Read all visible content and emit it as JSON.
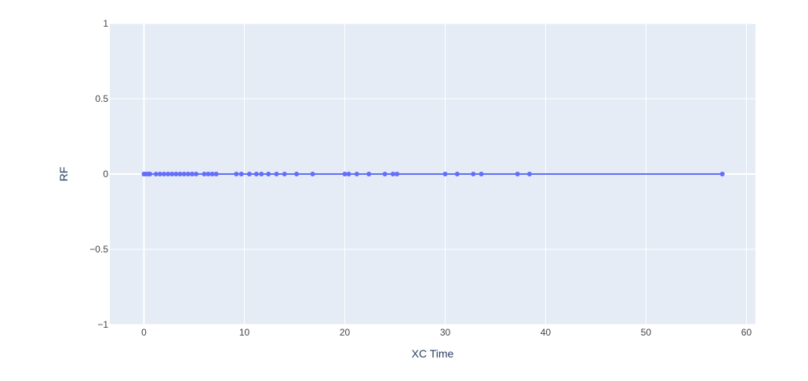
{
  "chart_data": {
    "type": "line",
    "mode": "lines+markers",
    "xlabel": "XC Time",
    "ylabel": "RF",
    "xlim": [
      -3.4,
      60.9
    ],
    "ylim": [
      -1,
      1
    ],
    "x_ticks": [
      0,
      10,
      20,
      30,
      40,
      50,
      60
    ],
    "x_tick_labels": [
      "0",
      "10",
      "20",
      "30",
      "40",
      "50",
      "60"
    ],
    "y_ticks": [
      1,
      0.5,
      0,
      -0.5,
      -1
    ],
    "y_tick_labels": [
      "1",
      "0.5",
      "0",
      "−0.5",
      "−1"
    ],
    "grid": true,
    "colors": {
      "plot_background": "#e5ecf6",
      "gridline": "#ffffff",
      "series": "#636efa",
      "axis_text": "#2a3f5f",
      "tick_text": "#444444"
    },
    "series": [
      {
        "x": [
          0,
          0.2,
          0.45,
          0.6,
          1.2,
          1.6,
          2.0,
          2.4,
          2.8,
          3.2,
          3.6,
          4.0,
          4.4,
          4.8,
          5.2,
          6.0,
          6.4,
          6.8,
          7.2,
          9.2,
          9.7,
          10.5,
          11.2,
          11.7,
          12.4,
          13.2,
          14.0,
          15.2,
          16.8,
          20.0,
          20.4,
          21.2,
          22.4,
          24.0,
          24.8,
          25.2,
          30.0,
          31.2,
          32.8,
          33.6,
          37.2,
          38.4,
          57.6
        ],
        "y": [
          0,
          0,
          0,
          0,
          0,
          0,
          0,
          0,
          0,
          0,
          0,
          0,
          0,
          0,
          0,
          0,
          0,
          0,
          0,
          0,
          0,
          0,
          0,
          0,
          0,
          0,
          0,
          0,
          0,
          0,
          0,
          0,
          0,
          0,
          0,
          0,
          0,
          0,
          0,
          0,
          0,
          0,
          0
        ]
      }
    ]
  }
}
